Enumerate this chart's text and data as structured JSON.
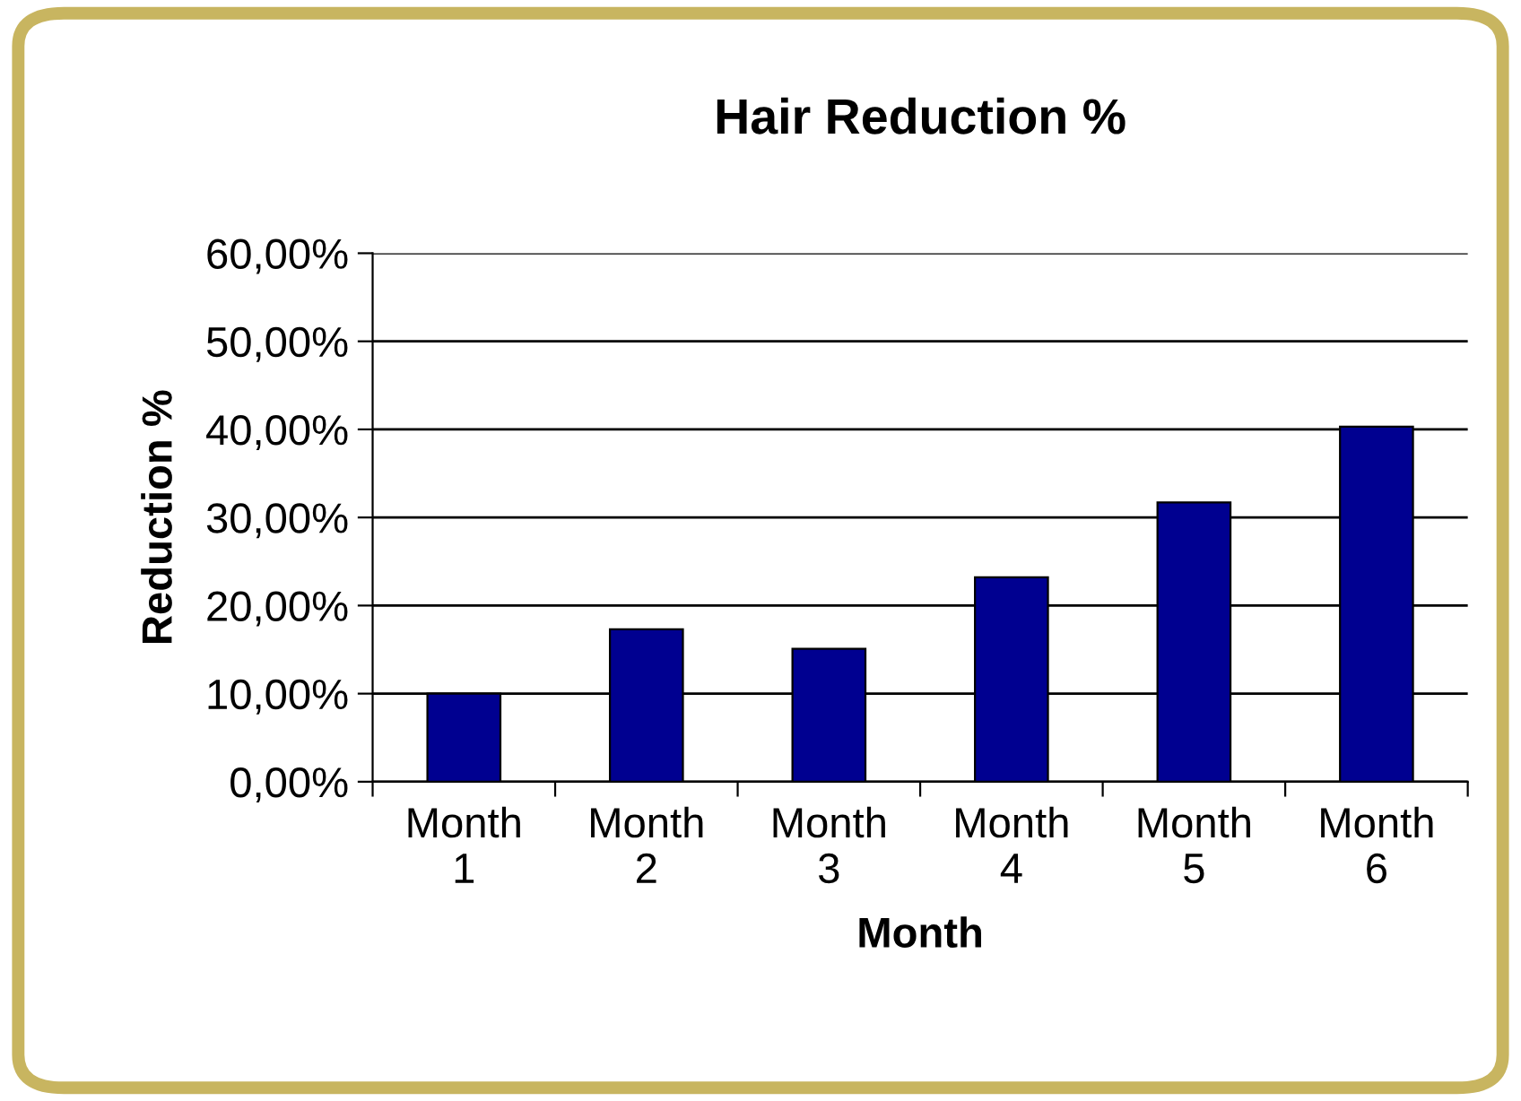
{
  "chart_data": {
    "type": "bar",
    "title": "Hair Reduction %",
    "xlabel": "Month",
    "ylabel": "Reduction %",
    "categories": [
      "Month\n1",
      "Month\n2",
      "Month\n3",
      "Month\n4",
      "Month\n5",
      "Month\n6"
    ],
    "values": [
      10,
      17.3,
      15.1,
      23.2,
      31.7,
      40.3
    ],
    "color": "#000090",
    "ylim": [
      0,
      60
    ],
    "yticks": [
      {
        "value": 0,
        "label": "0,00%"
      },
      {
        "value": 10,
        "label": "10,00%"
      },
      {
        "value": 20,
        "label": "20,00%"
      },
      {
        "value": 30,
        "label": "30,00%"
      },
      {
        "value": 40,
        "label": "40,00%"
      },
      {
        "value": 50,
        "label": "50,00%"
      },
      {
        "value": 60,
        "label": "60,00%"
      }
    ],
    "grid": "y",
    "legend": false
  }
}
